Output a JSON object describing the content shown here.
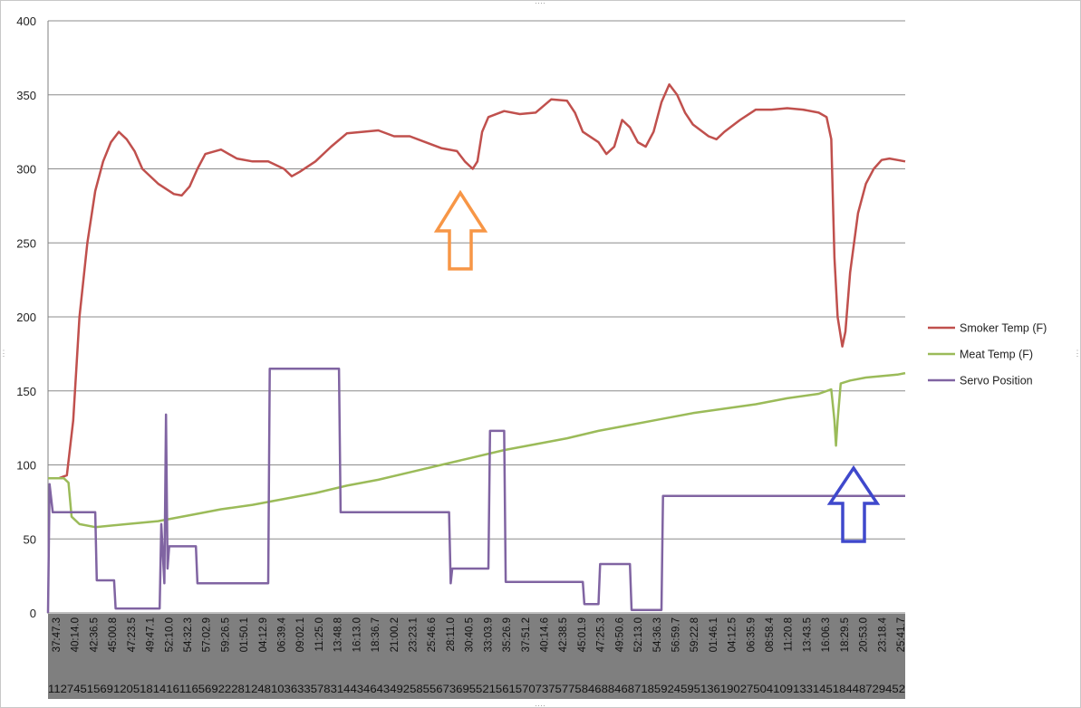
{
  "chart_data": {
    "type": "line",
    "title": "",
    "xlabel": "",
    "ylabel": "",
    "ylim": [
      0,
      400
    ],
    "yticks": [
      0,
      50,
      100,
      150,
      200,
      250,
      300,
      350,
      400
    ],
    "grid": true,
    "legend_position": "right",
    "x_tick_labels": [
      "37:47.3",
      "40:14.0",
      "42:36.5",
      "45:00.8",
      "47:23.5",
      "49:47.1",
      "52:10.0",
      "54:32.3",
      "57:02.9",
      "59:26.5",
      "01:50.1",
      "04:12.9",
      "06:39.4",
      "09:02.1",
      "11:25.0",
      "13:48.8",
      "16:13.0",
      "18:36.7",
      "21:00.2",
      "23:23.1",
      "25:46.6",
      "28:11.0",
      "30:40.5",
      "33:03.9",
      "35:26.9",
      "37:51.2",
      "40:14.6",
      "42:38.5",
      "45:01.9",
      "47:25.3",
      "49:50.6",
      "52:13.0",
      "54:36.3",
      "56:59.7",
      "59:22.8",
      "01:46.1",
      "04:12.5",
      "06:35.9",
      "08:58.4",
      "11:20.8",
      "13:43.5",
      "16:06.3",
      "18:29.5",
      "20:53.0",
      "23:18.4",
      "25:41.7"
    ],
    "x_index_labels_text": "1127451569120518141611656922281248103633578314434643492585567369552156157073757758468846871859245951361902750410913314518448729452",
    "series": [
      {
        "name": "Smoker Temp (F)",
        "color": "#C0504D",
        "points": [
          [
            0,
            91
          ],
          [
            0.7,
            91
          ],
          [
            1.2,
            93
          ],
          [
            1.6,
            130
          ],
          [
            2.0,
            200
          ],
          [
            2.5,
            250
          ],
          [
            3.0,
            285
          ],
          [
            3.5,
            305
          ],
          [
            4.0,
            318
          ],
          [
            4.5,
            325
          ],
          [
            5.0,
            320
          ],
          [
            5.5,
            312
          ],
          [
            6.0,
            300
          ],
          [
            7.0,
            290
          ],
          [
            8.0,
            283
          ],
          [
            8.5,
            282
          ],
          [
            9.0,
            288
          ],
          [
            9.5,
            300
          ],
          [
            10.0,
            310
          ],
          [
            11,
            313
          ],
          [
            12,
            307
          ],
          [
            13,
            305
          ],
          [
            14,
            305
          ],
          [
            15,
            300
          ],
          [
            15.5,
            295
          ],
          [
            16,
            298
          ],
          [
            17,
            305
          ],
          [
            18,
            315
          ],
          [
            19,
            324
          ],
          [
            20,
            325
          ],
          [
            21,
            326
          ],
          [
            22,
            322
          ],
          [
            23,
            322
          ],
          [
            24,
            318
          ],
          [
            25,
            314
          ],
          [
            26,
            312
          ],
          [
            26.5,
            305
          ],
          [
            27,
            300
          ],
          [
            27.3,
            305
          ],
          [
            27.6,
            325
          ],
          [
            28,
            335
          ],
          [
            29,
            339
          ],
          [
            30,
            337
          ],
          [
            31,
            338
          ],
          [
            32,
            347
          ],
          [
            33,
            346
          ],
          [
            33.5,
            338
          ],
          [
            34,
            325
          ],
          [
            35,
            318
          ],
          [
            35.5,
            310
          ],
          [
            36,
            315
          ],
          [
            36.5,
            333
          ],
          [
            37,
            328
          ],
          [
            37.5,
            318
          ],
          [
            38,
            315
          ],
          [
            38.5,
            325
          ],
          [
            39,
            345
          ],
          [
            39.5,
            357
          ],
          [
            40,
            350
          ],
          [
            40.5,
            338
          ],
          [
            41,
            330
          ],
          [
            42,
            322
          ],
          [
            42.5,
            320
          ],
          [
            43,
            325
          ],
          [
            44,
            333
          ],
          [
            45,
            340
          ],
          [
            46,
            340
          ],
          [
            47,
            341
          ],
          [
            48,
            340
          ],
          [
            49,
            338
          ],
          [
            49.5,
            335
          ],
          [
            49.8,
            320
          ],
          [
            50,
            240
          ],
          [
            50.2,
            200
          ],
          [
            50.5,
            180
          ],
          [
            50.7,
            190
          ],
          [
            51,
            230
          ],
          [
            51.5,
            270
          ],
          [
            52,
            290
          ],
          [
            52.5,
            300
          ],
          [
            53,
            306
          ],
          [
            53.5,
            307
          ],
          [
            54,
            306
          ],
          [
            54.5,
            305
          ]
        ]
      },
      {
        "name": "Meat Temp (F)",
        "color": "#9BBB59",
        "points": [
          [
            0,
            91
          ],
          [
            1.0,
            91
          ],
          [
            1.3,
            88
          ],
          [
            1.5,
            65
          ],
          [
            2,
            60
          ],
          [
            3,
            58
          ],
          [
            5,
            60
          ],
          [
            7,
            62
          ],
          [
            9,
            66
          ],
          [
            11,
            70
          ],
          [
            13,
            73
          ],
          [
            15,
            77
          ],
          [
            17,
            81
          ],
          [
            19,
            86
          ],
          [
            21,
            90
          ],
          [
            23,
            95
          ],
          [
            25,
            100
          ],
          [
            27,
            105
          ],
          [
            29,
            110
          ],
          [
            31,
            114
          ],
          [
            33,
            118
          ],
          [
            35,
            123
          ],
          [
            37,
            127
          ],
          [
            39,
            131
          ],
          [
            41,
            135
          ],
          [
            43,
            138
          ],
          [
            45,
            141
          ],
          [
            47,
            145
          ],
          [
            49,
            148
          ],
          [
            49.8,
            151
          ],
          [
            50.0,
            130
          ],
          [
            50.1,
            113
          ],
          [
            50.2,
            130
          ],
          [
            50.4,
            155
          ],
          [
            51,
            157
          ],
          [
            52,
            159
          ],
          [
            53,
            160
          ],
          [
            54,
            161
          ],
          [
            54.5,
            162
          ]
        ]
      },
      {
        "name": "Servo Position",
        "color": "#8064A2",
        "points": [
          [
            0,
            0
          ],
          [
            0.1,
            87
          ],
          [
            0.3,
            68
          ],
          [
            3.0,
            68
          ],
          [
            3.1,
            22
          ],
          [
            4.2,
            22
          ],
          [
            4.3,
            3
          ],
          [
            7.1,
            3
          ],
          [
            7.2,
            60
          ],
          [
            7.4,
            20
          ],
          [
            7.5,
            134
          ],
          [
            7.6,
            30
          ],
          [
            7.7,
            45
          ],
          [
            9.4,
            45
          ],
          [
            9.5,
            20
          ],
          [
            14.0,
            20
          ],
          [
            14.1,
            165
          ],
          [
            18.5,
            165
          ],
          [
            18.6,
            68
          ],
          [
            25.5,
            68
          ],
          [
            25.6,
            20
          ],
          [
            25.7,
            30
          ],
          [
            28.0,
            30
          ],
          [
            28.1,
            123
          ],
          [
            29.0,
            123
          ],
          [
            29.1,
            21
          ],
          [
            34.0,
            21
          ],
          [
            34.1,
            6
          ],
          [
            35.0,
            6
          ],
          [
            35.1,
            33
          ],
          [
            37.0,
            33
          ],
          [
            37.1,
            2
          ],
          [
            39.0,
            2
          ],
          [
            39.1,
            79
          ],
          [
            54.5,
            79
          ]
        ]
      }
    ]
  }
}
